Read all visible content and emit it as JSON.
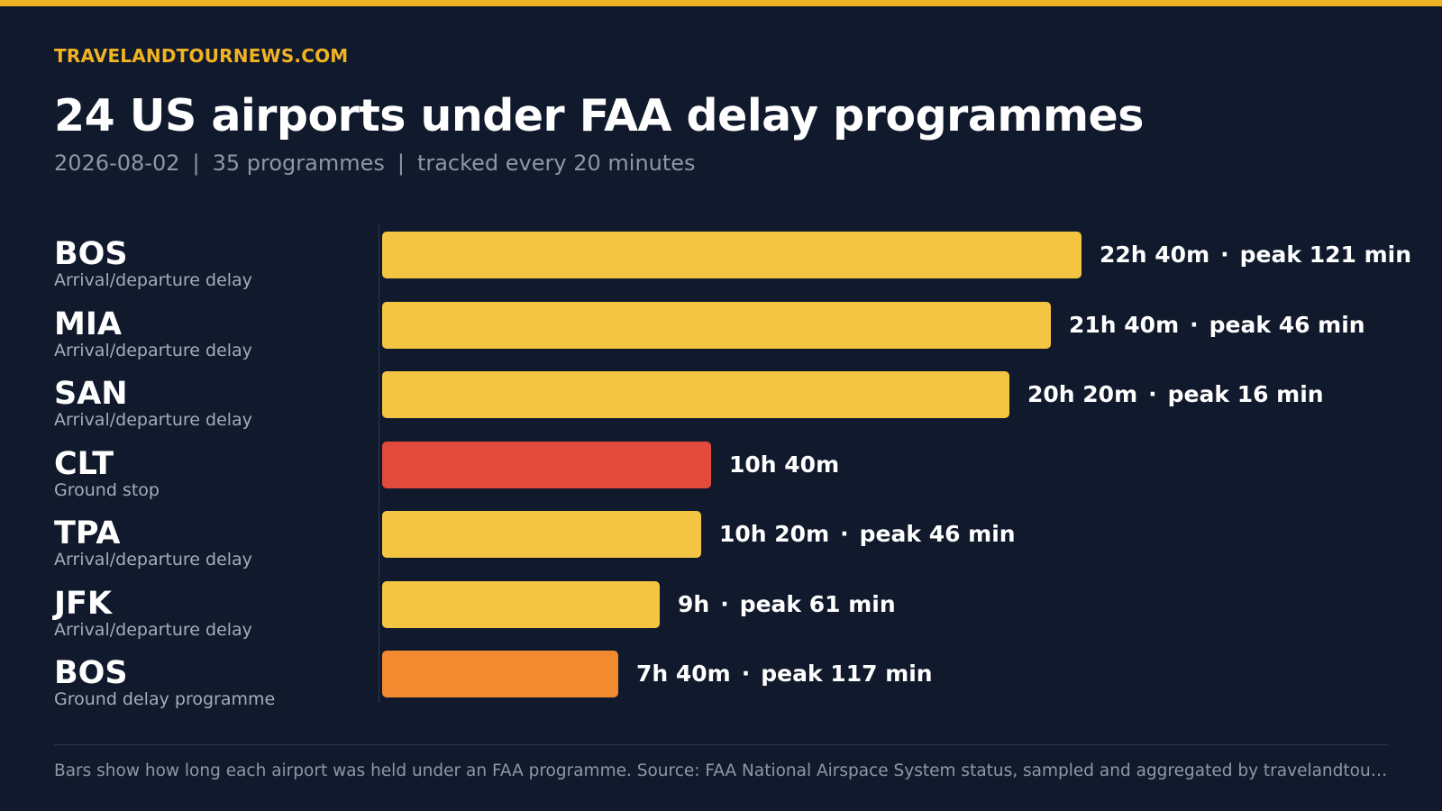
{
  "brand": "TRAVELANDTOURNEWS.COM",
  "header": {
    "title": "24 US airports under FAA delay programmes",
    "date": "2026-08-02",
    "programmes": "35 programmes",
    "cadence": "tracked every 20 minutes",
    "separator": "|"
  },
  "colors": {
    "background": "#101a2c",
    "accent": "#f2b322",
    "arrival_departure_delay": "#f4c542",
    "ground_stop": "#e24a3b",
    "ground_delay_programme": "#f28a30"
  },
  "chart_data": {
    "type": "bar",
    "orientation": "horizontal",
    "title": "24 US airports under FAA delay programmes",
    "value_unit": "minutes held",
    "xlim": [
      0,
      1360
    ],
    "categories": [
      "BOS",
      "MIA",
      "SAN",
      "CLT",
      "TPA",
      "JFK",
      "BOS"
    ],
    "program_types": [
      "Arrival/departure delay",
      "Arrival/departure delay",
      "Arrival/departure delay",
      "Ground stop",
      "Arrival/departure delay",
      "Arrival/departure delay",
      "Ground delay programme"
    ],
    "values": [
      1360,
      1300,
      1220,
      640,
      620,
      540,
      460
    ],
    "duration_labels": [
      "22h 40m",
      "21h 40m",
      "20h 20m",
      "10h 40m",
      "10h 20m",
      "9h",
      "7h 40m"
    ],
    "peak_labels": [
      "peak 121 min",
      "peak 46 min",
      "peak 16 min",
      "",
      "peak 46 min",
      "peak 61 min",
      "peak 117 min"
    ],
    "bar_colors": [
      "#f4c542",
      "#f4c542",
      "#f4c542",
      "#e24a3b",
      "#f4c542",
      "#f4c542",
      "#f28a30"
    ],
    "value_separator": "·"
  },
  "footnote": "Bars show how long each airport was held under an FAA programme. Source: FAA National Airspace System status, sampled and aggregated by travelandtour…"
}
